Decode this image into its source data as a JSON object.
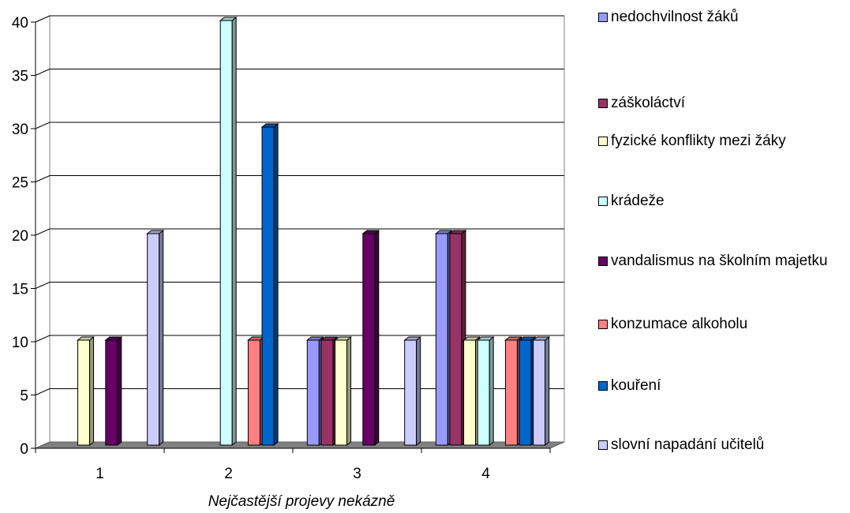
{
  "chart_data": {
    "type": "bar",
    "categories": [
      "1",
      "2",
      "3",
      "4"
    ],
    "xlabel": "Nejčastější projevy nekázně",
    "ylabel": "",
    "ylim": [
      0,
      40
    ],
    "yticks": [
      "0",
      "5",
      "10",
      "15",
      "20",
      "25",
      "30",
      "35",
      "40"
    ],
    "grid": true,
    "legend_position": "right",
    "series": [
      {
        "name": "nedochvilnost žáků",
        "color": "#9999ff",
        "values": [
          0,
          0,
          10,
          20
        ]
      },
      {
        "name": "záškoláctví",
        "color": "#993366",
        "values": [
          0,
          0,
          10,
          20
        ]
      },
      {
        "name": "fyzické konflikty mezi žáky",
        "color": "#ffffcc",
        "values": [
          10,
          0,
          10,
          10
        ]
      },
      {
        "name": "krádeže",
        "color": "#ccffff",
        "values": [
          0,
          40,
          0,
          10
        ]
      },
      {
        "name": "vandalismus na školním majetku",
        "color": "#660066",
        "values": [
          10,
          0,
          20,
          0
        ]
      },
      {
        "name": "konzumace alkoholu",
        "color": "#ff8080",
        "values": [
          0,
          10,
          0,
          10
        ]
      },
      {
        "name": "kouření",
        "color": "#0066cc",
        "values": [
          0,
          30,
          0,
          10
        ]
      },
      {
        "name": "slovní napadání učitelů",
        "color": "#ccccff",
        "values": [
          20,
          0,
          10,
          10
        ]
      }
    ]
  }
}
